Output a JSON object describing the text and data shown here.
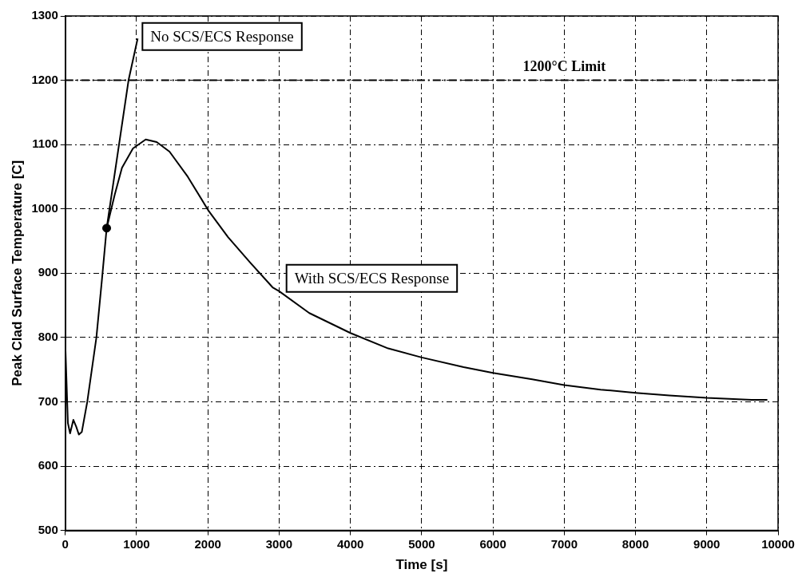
{
  "chart_data": {
    "type": "line",
    "xlabel": "Time [s]",
    "ylabel": "Peak Clad Surface Temperature [C]",
    "xlim": [
      0,
      10000
    ],
    "xticks": [
      0,
      1000,
      2000,
      3000,
      4000,
      5000,
      6000,
      7000,
      8000,
      9000,
      10000
    ],
    "ylim": [
      500,
      1300
    ],
    "yticks": [
      500,
      600,
      700,
      800,
      900,
      1000,
      1100,
      1200,
      1300
    ],
    "grid": true,
    "legend": false,
    "marker": "none",
    "line_style": "solid",
    "series": [
      {
        "color": "#000000",
        "x": [
          0,
          36,
          67,
          113,
          154,
          190,
          231,
          308,
          436,
          513,
          580,
          693,
          795,
          949,
          1128,
          1282,
          1462,
          1718,
          2010,
          2283,
          2590,
          2908,
          3000,
          3423,
          4000,
          4530,
          5000,
          5588,
          6000,
          6550,
          7000,
          7510,
          8000,
          8474,
          9000,
          9628,
          9850
        ],
        "values": [
          789,
          667,
          651,
          672,
          661,
          649,
          653,
          700,
          800,
          889,
          970,
          1022,
          1064,
          1094,
          1108,
          1104,
          1089,
          1050,
          997,
          956,
          917,
          878,
          872,
          838,
          807,
          783,
          769,
          754,
          745,
          735,
          726,
          719,
          714,
          710,
          706,
          703,
          703
        ]
      },
      {
        "color": "#000000",
        "x": [
          580,
          887,
          1015
        ],
        "values": [
          970,
          1200,
          1265
        ]
      },
      {
        "type": "scatter",
        "color": "#000000",
        "marker": "circle",
        "x": [
          580
        ],
        "values": [
          970
        ]
      }
    ],
    "ref_lines": [
      {
        "axis": "y",
        "value": 1200,
        "label": "1200°C Limit",
        "color": "#000000",
        "line_style": "dashdot"
      }
    ],
    "annotations": [
      "No SCS/ECS Response",
      "With SCS/ECS Response"
    ]
  }
}
